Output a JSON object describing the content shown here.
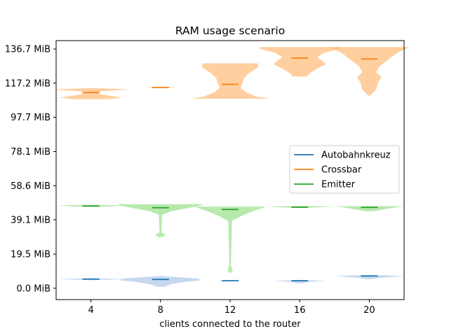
{
  "chart_data": {
    "type": "violin",
    "title": "RAM usage scenario",
    "xlabel": "clients connected to the router",
    "ylabel": "",
    "categories": [
      "4",
      "8",
      "12",
      "16",
      "20"
    ],
    "x": [
      4,
      8,
      12,
      16,
      20
    ],
    "xlim": [
      2,
      22
    ],
    "ylim": [
      -6.5,
      141.5
    ],
    "yticks": [
      0.0,
      19.5,
      39.1,
      58.6,
      78.1,
      97.7,
      117.2,
      136.7
    ],
    "ytick_labels": [
      "0.0 MiB",
      "19.5 MiB",
      "39.1 MiB",
      "58.6 MiB",
      "78.1 MiB",
      "97.7 MiB",
      "117.2 MiB",
      "136.7 MiB"
    ],
    "legend_position": "center-right",
    "series": [
      {
        "name": "Autobahnkreuz",
        "color": "#1f77b4",
        "fill": "#aec7e8",
        "medians": [
          5.2,
          5.0,
          4.3,
          4.3,
          7.0
        ],
        "violins": [
          [
            [
              4.6,
              0.05
            ],
            [
              5.2,
              1.9
            ],
            [
              5.8,
              0.05
            ]
          ],
          [
            [
              0.8,
              0.2
            ],
            [
              2.3,
              0.6
            ],
            [
              3.6,
              1.4
            ],
            [
              4.6,
              2.4
            ],
            [
              5.6,
              2.1
            ],
            [
              6.6,
              0.6
            ],
            [
              7.0,
              0.05
            ]
          ],
          [
            [
              4.0,
              0.05
            ],
            [
              4.3,
              0.8
            ],
            [
              4.6,
              0.05
            ]
          ],
          [
            [
              2.8,
              0.15
            ],
            [
              3.5,
              0.4
            ],
            [
              4.3,
              1.5
            ],
            [
              4.6,
              0.05
            ]
          ],
          [
            [
              5.2,
              0.15
            ],
            [
              5.9,
              0.6
            ],
            [
              7.0,
              2.0
            ],
            [
              7.6,
              0.05
            ]
          ]
        ]
      },
      {
        "name": "Crossbar",
        "color": "#ff7f0e",
        "fill": "#ffbb78",
        "medians": [
          111.8,
          114.7,
          116.5,
          131.5,
          131.0
        ],
        "violins": [
          [
            [
              108.0,
              1.0
            ],
            [
              109.0,
              1.8
            ],
            [
              110.8,
              0.5
            ],
            [
              112.5,
              0.5
            ],
            [
              113.6,
              2.3
            ],
            [
              114.4,
              0.05
            ]
          ],
          [
            [
              114.3,
              0.05
            ],
            [
              114.7,
              0.9
            ],
            [
              115.1,
              0.05
            ]
          ],
          [
            [
              108.3,
              2.3
            ],
            [
              109.5,
              1.5
            ],
            [
              112.0,
              0.9
            ],
            [
              114.5,
              0.6
            ],
            [
              117.0,
              0.7
            ],
            [
              120.0,
              0.8
            ],
            [
              123.0,
              1.1
            ],
            [
              126.0,
              1.6
            ],
            [
              128.5,
              1.6
            ]
          ],
          [
            [
              121.0,
              0.4
            ],
            [
              123.0,
              0.6
            ],
            [
              125.5,
              1.0
            ],
            [
              128.0,
              1.5
            ],
            [
              130.0,
              1.3
            ],
            [
              132.0,
              1.0
            ],
            [
              134.5,
              1.4
            ],
            [
              136.8,
              2.3
            ],
            [
              137.8,
              2.3
            ]
          ],
          [
            [
              110.0,
              0.05
            ],
            [
              113.5,
              0.4
            ],
            [
              117.5,
              0.5
            ],
            [
              120.5,
              0.7
            ],
            [
              123.5,
              0.4
            ],
            [
              127.0,
              0.6
            ],
            [
              130.0,
              1.0
            ],
            [
              134.5,
              1.6
            ],
            [
              137.8,
              2.3
            ]
          ]
        ]
      },
      {
        "name": "Emitter",
        "color": "#2ca02c",
        "fill": "#98df8a",
        "medians": [
          47.0,
          46.0,
          45.0,
          46.3,
          46.2
        ],
        "violins": [
          [
            [
              46.4,
              0.1
            ],
            [
              46.8,
              1.1
            ],
            [
              47.3,
              2.0
            ],
            [
              47.7,
              0.05
            ]
          ],
          [
            [
              29.2,
              0.1
            ],
            [
              30.5,
              0.3
            ],
            [
              32.0,
              0.05
            ],
            [
              42.0,
              0.1
            ],
            [
              44.0,
              0.6
            ],
            [
              46.0,
              1.7
            ],
            [
              47.5,
              2.4
            ],
            [
              48.0,
              2.4
            ]
          ],
          [
            [
              8.8,
              0.05
            ],
            [
              10.0,
              0.15
            ],
            [
              13.0,
              0.05
            ],
            [
              38.5,
              0.1
            ],
            [
              40.0,
              0.4
            ],
            [
              42.0,
              0.8
            ],
            [
              44.0,
              1.3
            ],
            [
              46.0,
              1.9
            ],
            [
              46.6,
              2.0
            ]
          ],
          [
            [
              45.8,
              0.05
            ],
            [
              46.3,
              1.2
            ],
            [
              46.8,
              2.0
            ],
            [
              47.0,
              0.05
            ]
          ],
          [
            [
              44.0,
              0.2
            ],
            [
              45.0,
              0.8
            ],
            [
              46.2,
              1.5
            ],
            [
              46.8,
              2.0
            ],
            [
              47.0,
              0.05
            ]
          ]
        ]
      }
    ]
  }
}
